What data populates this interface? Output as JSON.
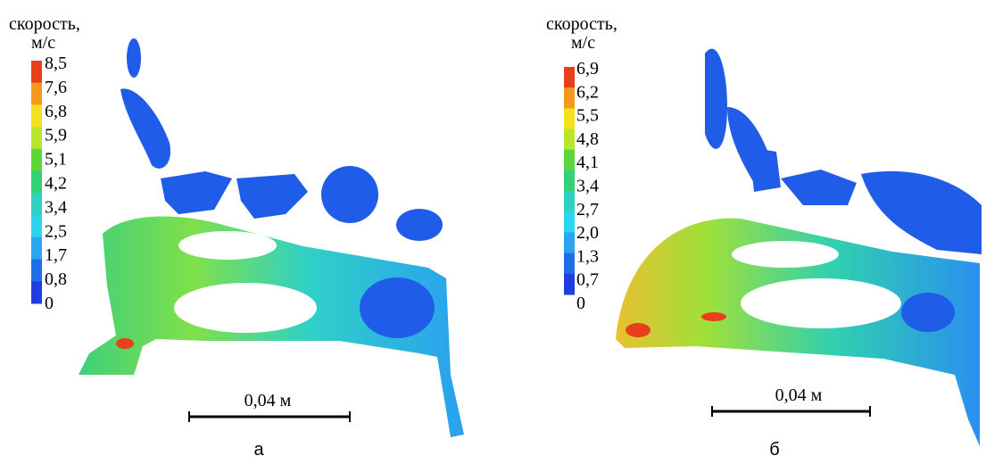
{
  "panels": [
    {
      "legend_title": "скорость,",
      "legend_unit": "м/с",
      "legend_labels": [
        "8,5",
        "7,6",
        "6,8",
        "5,9",
        "5,1",
        "4,2",
        "3,4",
        "2,5",
        "1,7",
        "0,8",
        "0"
      ],
      "scale_label": "0,04 м",
      "caption": "а"
    },
    {
      "legend_title": "скорость,",
      "legend_unit": "м/с",
      "legend_labels": [
        "6,9",
        "6,2",
        "5,5",
        "4,8",
        "4,1",
        "3,4",
        "2,7",
        "2,0",
        "1,3",
        "0,7",
        "0"
      ],
      "scale_label": "0,04 м",
      "caption": "б"
    }
  ]
}
